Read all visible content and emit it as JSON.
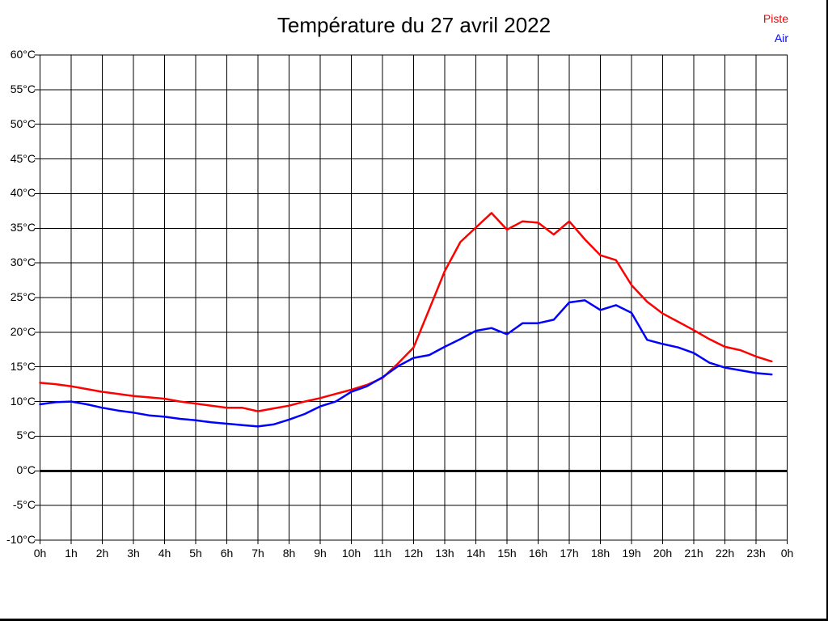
{
  "header": {
    "title": "Température du 27 avril 2022"
  },
  "legend": {
    "items": [
      {
        "label": "Piste",
        "color": "#ff0000"
      },
      {
        "label": "Air",
        "color": "#0000ff"
      }
    ]
  },
  "colors": {
    "background": "#ffffff",
    "grid": "#000000",
    "frame": "#000000",
    "zero_line": "#000000",
    "piste": "#ff0000",
    "air": "#0000ff"
  },
  "chart_data": {
    "type": "line",
    "title": "Température du 27 avril 2022",
    "xlabel": "",
    "ylabel": "",
    "xlim": [
      0,
      24
    ],
    "ylim": [
      -10,
      60
    ],
    "y_tick_step": 5,
    "grid": true,
    "zero_line_bold": true,
    "legend_position": "top-right",
    "y_ticks": [
      60,
      55,
      50,
      45,
      40,
      35,
      30,
      25,
      20,
      15,
      10,
      5,
      0,
      -5,
      -10
    ],
    "y_tick_labels": [
      "60°C",
      "55°C",
      "50°C",
      "45°C",
      "40°C",
      "35°C",
      "30°C",
      "25°C",
      "20°C",
      "15°C",
      "10°C",
      "5°C",
      "0°C",
      "-5°C",
      "-10°C"
    ],
    "x_ticks": [
      0,
      1,
      2,
      3,
      4,
      5,
      6,
      7,
      8,
      9,
      10,
      11,
      12,
      13,
      14,
      15,
      16,
      17,
      18,
      19,
      20,
      21,
      22,
      23,
      24
    ],
    "x_tick_labels": [
      "0h",
      "1h",
      "2h",
      "3h",
      "4h",
      "5h",
      "6h",
      "7h",
      "8h",
      "9h",
      "10h",
      "11h",
      "12h",
      "13h",
      "14h",
      "15h",
      "16h",
      "17h",
      "18h",
      "19h",
      "20h",
      "21h",
      "22h",
      "23h",
      "0h"
    ],
    "x": [
      0,
      0.5,
      1,
      1.5,
      2,
      2.5,
      3,
      3.5,
      4,
      4.5,
      5,
      5.5,
      6,
      6.5,
      7,
      7.5,
      8,
      8.5,
      9,
      9.5,
      10,
      10.5,
      11,
      11.5,
      12,
      12.5,
      13,
      13.5,
      14,
      14.5,
      15,
      15.5,
      16,
      16.5,
      17,
      17.5,
      18,
      18.5,
      19,
      19.5,
      20,
      20.5,
      21,
      21.5,
      22,
      22.5,
      23,
      23.5
    ],
    "series": [
      {
        "name": "Piste",
        "color": "#ff0000",
        "values": [
          12.7,
          12.5,
          12.2,
          11.8,
          11.4,
          11.1,
          10.8,
          10.6,
          10.4,
          10.0,
          9.7,
          9.4,
          9.1,
          9.1,
          8.6,
          9.0,
          9.4,
          10.0,
          10.5,
          11.1,
          11.7,
          12.4,
          13.4,
          15.5,
          17.8,
          23.3,
          28.8,
          33.0,
          35.1,
          37.2,
          34.8,
          36.0,
          35.8,
          34.1,
          36.0,
          33.4,
          31.1,
          30.4,
          26.8,
          24.4,
          22.7,
          21.5,
          20.3,
          19.0,
          17.9,
          17.4,
          16.5,
          15.8
        ]
      },
      {
        "name": "Air",
        "color": "#0000ff",
        "values": [
          9.6,
          9.9,
          10.0,
          9.6,
          9.1,
          8.7,
          8.4,
          8.0,
          7.8,
          7.5,
          7.3,
          7.0,
          6.8,
          6.6,
          6.4,
          6.7,
          7.4,
          8.2,
          9.3,
          10.0,
          11.4,
          12.2,
          13.5,
          15.1,
          16.3,
          16.7,
          17.9,
          19.0,
          20.2,
          20.6,
          19.7,
          21.3,
          21.3,
          21.8,
          24.3,
          24.6,
          23.2,
          23.9,
          22.8,
          18.9,
          18.3,
          17.8,
          17.0,
          15.6,
          14.9,
          14.5,
          14.1,
          13.9
        ]
      }
    ]
  }
}
